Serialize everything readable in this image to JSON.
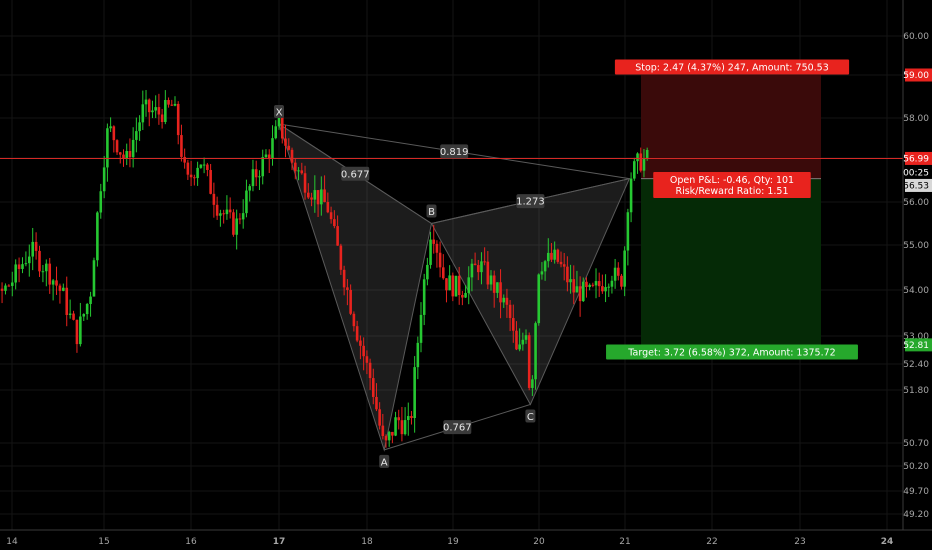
{
  "chart_data": {
    "type": "candlestick",
    "title": "",
    "xlabel": "",
    "ylabel": "",
    "x_ticks": [
      "14",
      "15",
      "16",
      "17",
      "18",
      "19",
      "20",
      "21",
      "22",
      "23",
      "24"
    ],
    "y_ticks": [
      "60.00",
      "59.00",
      "58.00",
      "57.00",
      "56.00",
      "55.00",
      "54.00",
      "53.00",
      "52.40",
      "51.80",
      "50.70",
      "50.20",
      "49.70",
      "49.20"
    ],
    "ylim": [
      49.0,
      60.6
    ],
    "current_price": "56.99",
    "countdown": "00:25",
    "last_close": "56.53",
    "colors": {
      "up": "#26c832",
      "down": "#e8231e",
      "pattern": "#5a5a5a",
      "price_line": "#d42a26"
    },
    "pattern": {
      "name": "harmonic XABCD",
      "points": [
        {
          "label": "X",
          "day": 17.0,
          "price": 57.85
        },
        {
          "label": "A",
          "day": 18.2,
          "price": 50.55
        },
        {
          "label": "B",
          "day": 18.75,
          "price": 55.5
        },
        {
          "label": "C",
          "day": 19.9,
          "price": 51.5
        },
        {
          "label": "D",
          "day": 21.05,
          "price": 56.53
        }
      ],
      "ratios": [
        {
          "id": "XB",
          "value": "0.677"
        },
        {
          "id": "XD",
          "value": "0.819"
        },
        {
          "id": "BD",
          "value": "1.273"
        },
        {
          "id": "AC",
          "value": "0.767"
        }
      ]
    },
    "position": {
      "entry": 56.53,
      "stop": 59.0,
      "target": 52.81,
      "stop_label": "Stop: 2.47 (4.37%) 247, Amount: 750.53",
      "target_label": "Target: 3.72 (6.58%) 372, Amount: 1375.72",
      "pnl_label": "Open P&L: -0.46, Qty: 101",
      "rr_label": "Risk/Reward Ratio: 1.51",
      "stop_price_label": "59.00",
      "target_price_label": "52.81"
    }
  }
}
